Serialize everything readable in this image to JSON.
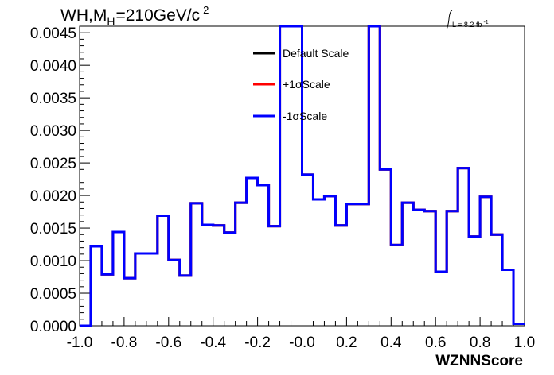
{
  "chart_data": {
    "type": "line",
    "title_prefix": "WH,M",
    "title_sub": "H",
    "title_main": "=210GeV/c",
    "title_sup": "2",
    "lumi_prefix": "L = 8.2 fb",
    "lumi_sup": "-1",
    "xlabel": "WZNNScore",
    "ylabel": "",
    "xlim": [
      -1.0,
      1.0
    ],
    "ylim": [
      0.0,
      0.0046
    ],
    "x_ticks": [
      "-1.0",
      "-0.8",
      "-0.6",
      "-0.4",
      "-0.2",
      "-0.0",
      "0.2",
      "0.4",
      "0.6",
      "0.8",
      "1.0"
    ],
    "y_ticks": [
      "0.0000",
      "0.0005",
      "0.0010",
      "0.0015",
      "0.0020",
      "0.0025",
      "0.0030",
      "0.0035",
      "0.0040",
      "0.0045"
    ],
    "bin_edges": [
      -1.0,
      -0.95,
      -0.9,
      -0.85,
      -0.8,
      -0.75,
      -0.7,
      -0.65,
      -0.6,
      -0.55,
      -0.5,
      -0.45,
      -0.4,
      -0.35,
      -0.3,
      -0.25,
      -0.2,
      -0.15,
      -0.1,
      -0.05,
      0.0,
      0.05,
      0.1,
      0.15,
      0.2,
      0.25,
      0.3,
      0.35,
      0.4,
      0.45,
      0.5,
      0.55,
      0.6,
      0.65,
      0.7,
      0.75,
      0.8,
      0.85,
      0.9,
      0.95,
      1.0
    ],
    "legend_position": "top-center",
    "series": [
      {
        "name": "Default Scale",
        "color": "#000000",
        "values": [
          0.0,
          0.00122,
          0.00079,
          0.00144,
          0.00073,
          0.00111,
          0.00111,
          0.00169,
          0.00101,
          0.00077,
          0.00188,
          0.00155,
          0.00154,
          0.00143,
          0.00189,
          0.00227,
          0.00216,
          0.00153,
          0.0046,
          0.0046,
          0.00232,
          0.00194,
          0.00199,
          0.00154,
          0.00187,
          0.00187,
          0.0046,
          0.0024,
          0.00124,
          0.00189,
          0.00178,
          0.00176,
          0.00083,
          0.00176,
          0.00242,
          0.00137,
          0.00198,
          0.0014,
          0.00086,
          3e-05
        ]
      },
      {
        "name": "+1σScale",
        "color": "#ff0000",
        "values": [
          0.0,
          0.00122,
          0.00079,
          0.00144,
          0.00073,
          0.00111,
          0.00111,
          0.00169,
          0.00101,
          0.00077,
          0.00188,
          0.00155,
          0.00154,
          0.00143,
          0.00189,
          0.00227,
          0.00216,
          0.00153,
          0.0046,
          0.0046,
          0.00232,
          0.00194,
          0.00199,
          0.00154,
          0.00187,
          0.00187,
          0.0046,
          0.0024,
          0.00124,
          0.00189,
          0.00178,
          0.00176,
          0.00083,
          0.00176,
          0.00242,
          0.00137,
          0.00198,
          0.0014,
          0.00086,
          3e-05
        ]
      },
      {
        "name": "-1σScale",
        "color": "#0000ff",
        "values": [
          0.0,
          0.00122,
          0.00079,
          0.00144,
          0.00073,
          0.00111,
          0.00111,
          0.00169,
          0.00101,
          0.00077,
          0.00188,
          0.00155,
          0.00154,
          0.00143,
          0.00189,
          0.00227,
          0.00216,
          0.00153,
          0.0046,
          0.0046,
          0.00232,
          0.00194,
          0.00199,
          0.00154,
          0.00187,
          0.00187,
          0.0046,
          0.0024,
          0.00124,
          0.00189,
          0.00178,
          0.00176,
          0.00083,
          0.00176,
          0.00242,
          0.00137,
          0.00198,
          0.0014,
          0.00086,
          3e-05
        ]
      }
    ]
  }
}
